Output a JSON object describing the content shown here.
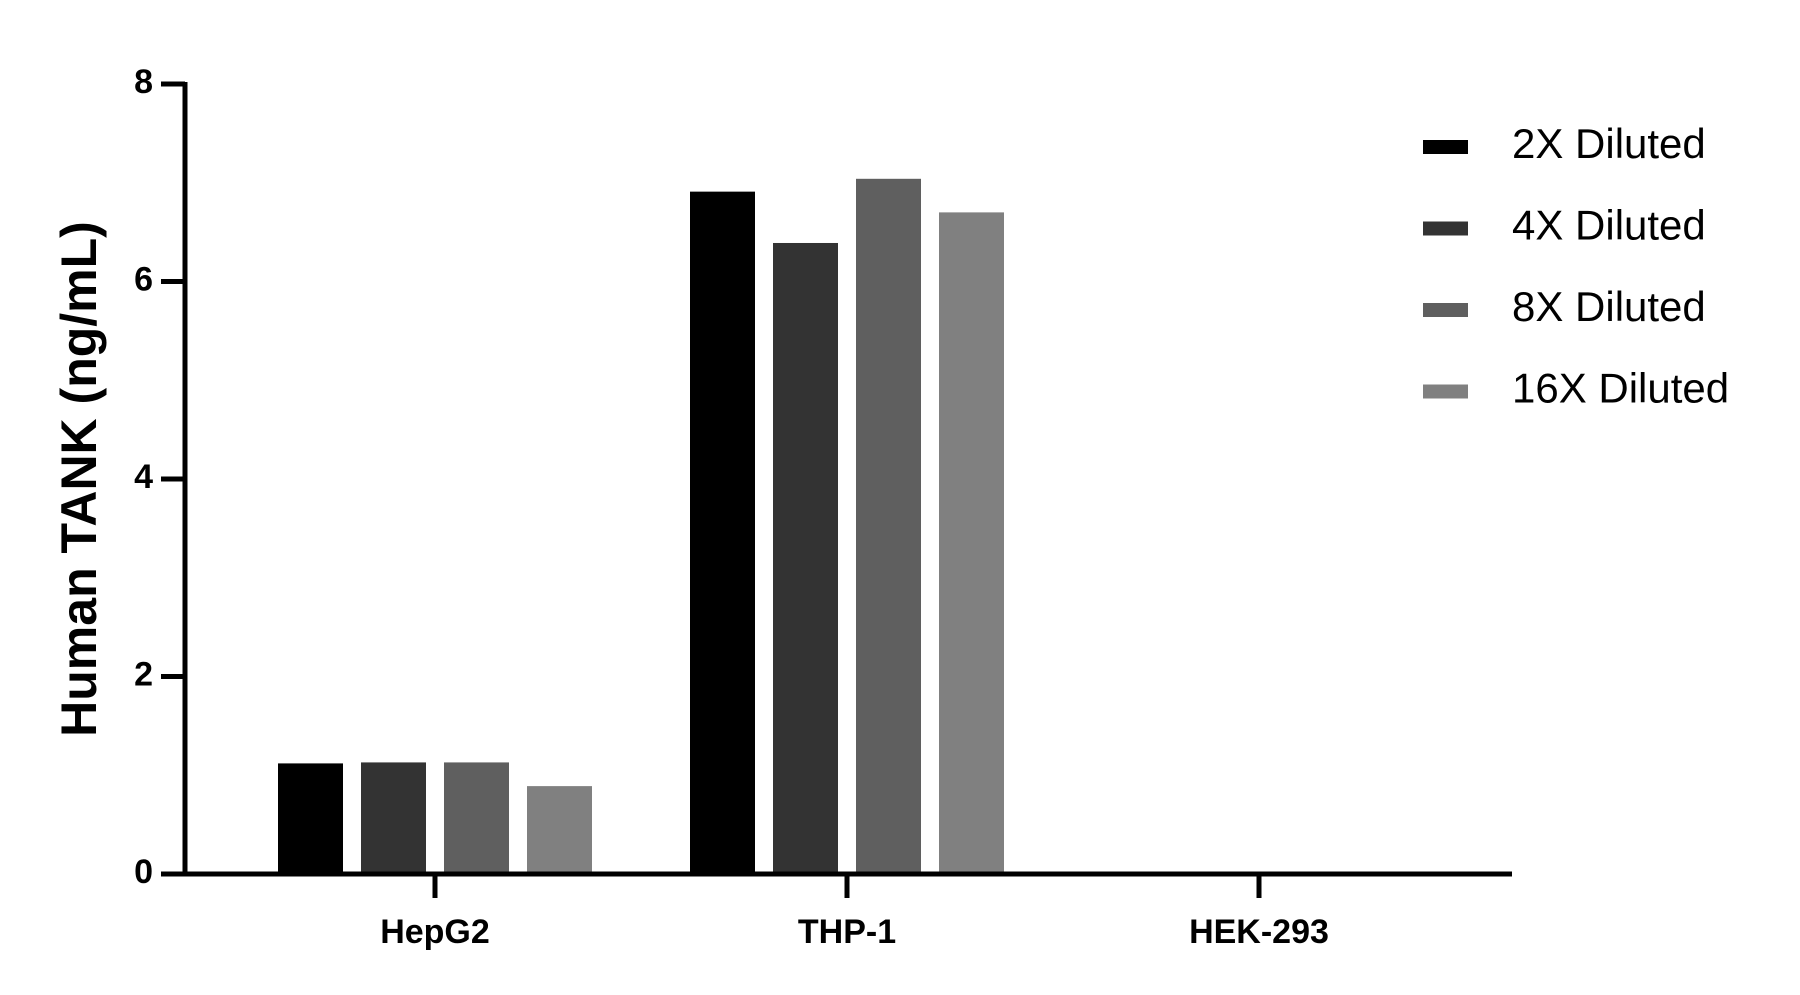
{
  "chart_data": {
    "type": "bar",
    "y_label": "Human TANK (ng/mL)",
    "categories": [
      "HepG2",
      "THP-1",
      "HEK-293"
    ],
    "series": [
      {
        "name": "2X Diluted",
        "color": "#000000",
        "values": [
          1.12,
          6.91,
          0
        ]
      },
      {
        "name": "4X Diluted",
        "color": "#333333",
        "values": [
          1.13,
          6.39,
          0
        ]
      },
      {
        "name": "8X Diluted",
        "color": "#5f5f5f",
        "values": [
          1.13,
          7.04,
          0
        ]
      },
      {
        "name": "16X Diluted",
        "color": "#808080",
        "values": [
          0.89,
          6.7,
          0
        ]
      }
    ],
    "ylim": [
      0,
      8
    ],
    "yticks": [
      0,
      2,
      4,
      6,
      8
    ],
    "legend": "right"
  }
}
